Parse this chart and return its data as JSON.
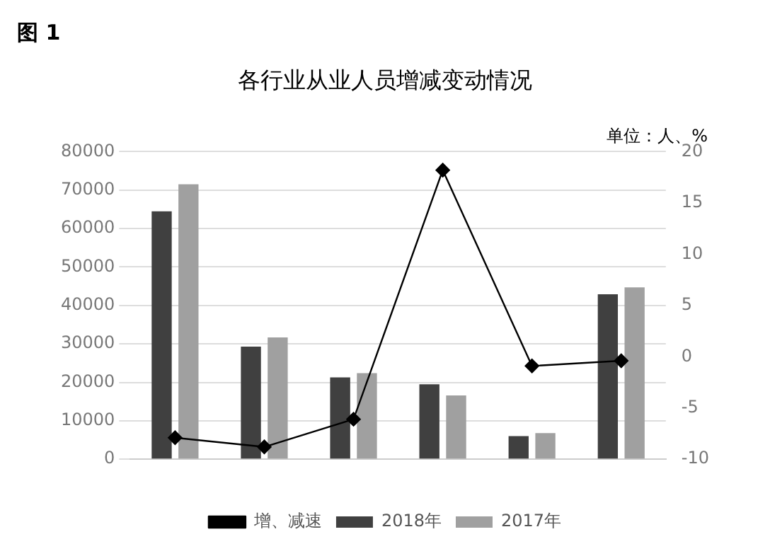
{
  "chart_data": {
    "type": "bar",
    "title": "各行业从业人员增减变动情况",
    "annotations": [
      "图 1",
      "单位：人、%"
    ],
    "categories": [
      null,
      null,
      null,
      null,
      null,
      null
    ],
    "series": [
      {
        "name": "2018年",
        "color": "#404040",
        "values": [
          64500,
          29300,
          21300,
          19500,
          6000,
          42900
        ]
      },
      {
        "name": "2017年",
        "color": "#a0a0a0",
        "values": [
          71500,
          31700,
          22400,
          16600,
          6800,
          44700
        ]
      },
      {
        "name": "增、减速",
        "type": "line",
        "axis": "y2",
        "color": "#000000",
        "marker": "diamond",
        "values": [
          -7.9,
          -8.8,
          -6.1,
          18.2,
          -0.9,
          -0.4
        ]
      }
    ],
    "ylim": [
      0,
      80000
    ],
    "yticks": [
      0,
      10000,
      20000,
      30000,
      40000,
      50000,
      60000,
      70000,
      80000
    ],
    "y2lim": [
      -10,
      20
    ],
    "y2ticks": [
      -10,
      -5,
      0,
      5,
      10,
      15,
      20
    ],
    "grid": "y",
    "legend": "bottom"
  }
}
